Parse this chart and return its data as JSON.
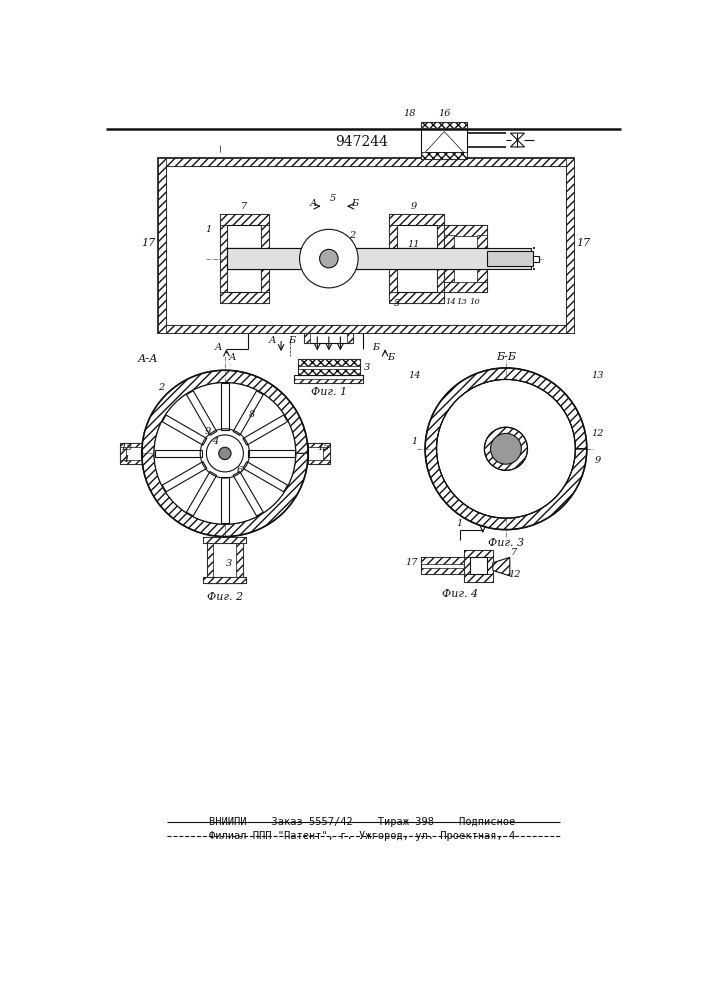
{
  "patent_number": "947244",
  "footer_line1": "ВНИИПИ    Заказ 5557/42    Тираж 398    Подписное",
  "footer_line2": "Филиал ППП \"Патент\", г. Ужгород, ул. Проектная, 4",
  "fig1_label": "Фиг. 1",
  "fig2_label": "Фиг. 2",
  "fig3_label": "Фиг. 3",
  "fig4_label": "Фиг. 4",
  "background_color": "#ffffff",
  "line_color": "#111111"
}
